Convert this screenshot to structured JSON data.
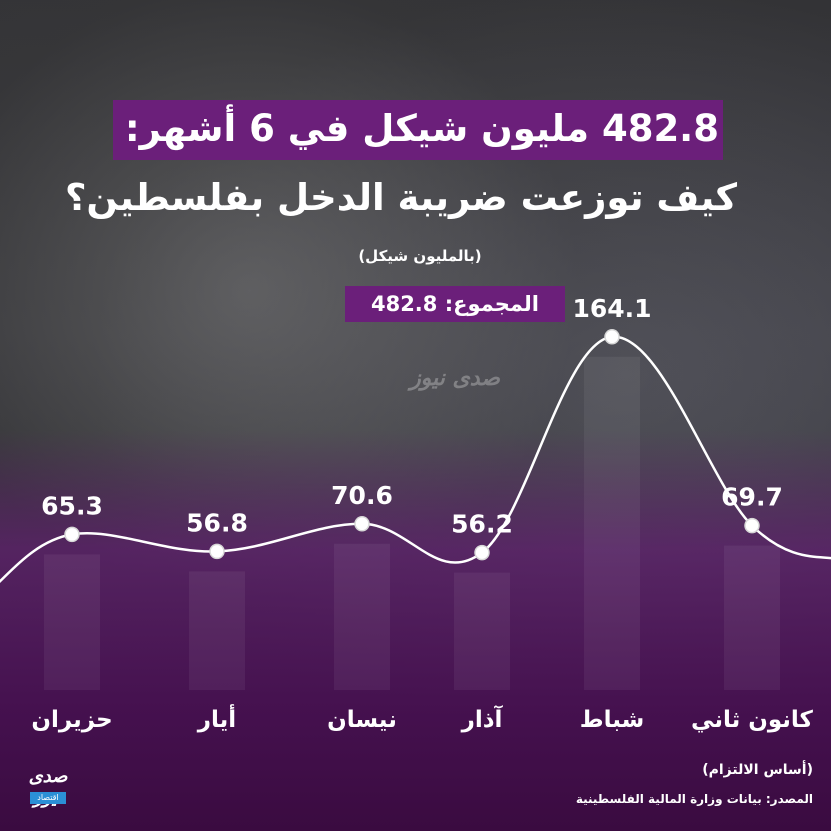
{
  "header": {
    "title_line1": "482.8 مليون شيكل في 6 أشهر:",
    "title_line2": "كيف توزعت ضريبة الدخل بفلسطين؟",
    "unit_note": "(بالمليون شيكل)",
    "total_label": "المجموع: 482.8"
  },
  "footer": {
    "note": "(أساس الالتزام)",
    "source": "المصدر: بيانات وزارة المالية الفلسطينية"
  },
  "logo": {
    "name": "صدى نيوز",
    "sub": "اقتصاد"
  },
  "colors": {
    "accent": "#6b1f7a",
    "line": "#ffffff"
  },
  "chart_data": {
    "type": "line",
    "categories": [
      "حزيران",
      "أيار",
      "نيسان",
      "آذار",
      "شباط",
      "كانون ثاني"
    ],
    "values": [
      65.3,
      56.8,
      70.6,
      56.2,
      164.1,
      69.7
    ],
    "value_labels": [
      "65.3",
      "56.8",
      "70.6",
      "56.2",
      "164.1",
      "69.7"
    ],
    "ylim": [
      0,
      180
    ],
    "grid": false,
    "legend": "none"
  }
}
